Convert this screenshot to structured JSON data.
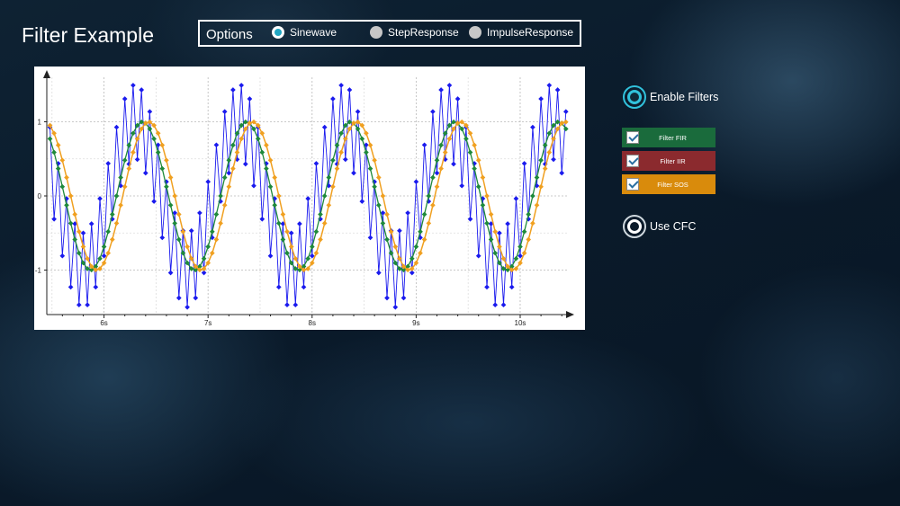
{
  "app_title": "Filter Example",
  "options": {
    "label": "Options",
    "radios": [
      {
        "label": "Sinewave",
        "selected": true
      },
      {
        "label": "StepResponse",
        "selected": false
      },
      {
        "label": "ImpulseResponse",
        "selected": false
      }
    ]
  },
  "controls": {
    "enable_filters": {
      "label": "Enable Filters",
      "on": true
    },
    "use_cfc": {
      "label": "Use CFC",
      "on": false
    },
    "filters": [
      {
        "label": "Filter FIR",
        "checked": true,
        "color": "#1a6b3c"
      },
      {
        "label": "Filter IIR",
        "checked": true,
        "color": "#8b2a2e"
      },
      {
        "label": "Filter SOS",
        "checked": true,
        "color": "#d98b0c"
      }
    ]
  },
  "chart_data": {
    "type": "line",
    "xlabel": "",
    "ylabel": "",
    "xlim": [
      5.45,
      10.45
    ],
    "ylim": [
      -1.6,
      1.6
    ],
    "x_ticks": [
      "6s",
      "7s",
      "8s",
      "9s",
      "10s"
    ],
    "y_ticks": [
      "1",
      "0",
      "-1"
    ],
    "grid": true,
    "legend": "none",
    "series": [
      {
        "color": "#1a1aee",
        "signal": "sine 1 Hz amplitude 1 plus alternating high-frequency component amplitude 0.5",
        "sample_rate_hz": 25
      },
      {
        "color": "#1e8a3a",
        "signal": "sine 1 Hz amplitude 1, filtered",
        "sample_rate_hz": 25
      },
      {
        "color": "#f0a020",
        "signal": "sine 1 Hz amplitude 1, filtered, delayed",
        "sample_rate_hz": 25
      }
    ]
  },
  "colors": {
    "accent": "#31c2dc",
    "background": "#0a1a2a"
  }
}
